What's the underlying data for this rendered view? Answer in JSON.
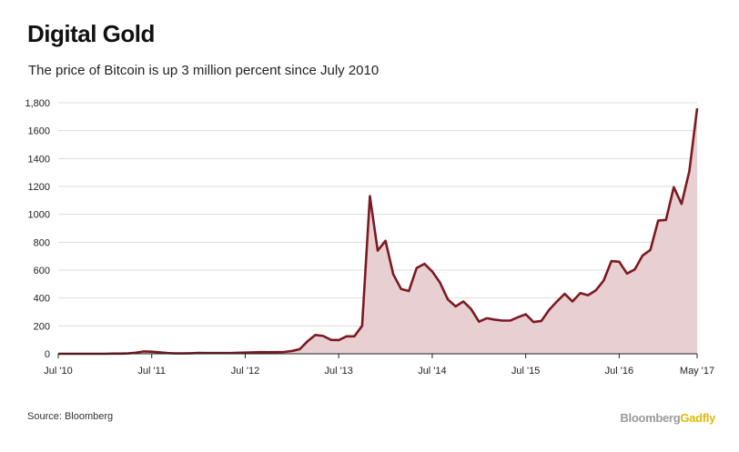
{
  "title": "Digital Gold",
  "subtitle": "The price of Bitcoin is up 3 million percent since July 2010",
  "source": "Source: Bloomberg",
  "brand": {
    "part1": "Bloomberg",
    "part2": "Gadfly"
  },
  "colors": {
    "line": "#7b1a22",
    "fill": "#e8cfd1",
    "grid": "#dcdcdc",
    "axis": "#222222"
  },
  "chart_data": {
    "type": "area",
    "xlabel": "",
    "ylabel": "",
    "ylim": [
      0,
      1800
    ],
    "yticks": [
      0,
      200,
      400,
      600,
      800,
      1000,
      1200,
      1400,
      1600,
      1800
    ],
    "ytick_labels": [
      "0",
      "200",
      "400",
      "600",
      "800",
      "1000",
      "1200",
      "1400",
      "1600",
      "1,800"
    ],
    "xticks": [
      {
        "x": "2010-07",
        "label": "Jul '10"
      },
      {
        "x": "2011-07",
        "label": "Jul '11"
      },
      {
        "x": "2012-07",
        "label": "Jul '12"
      },
      {
        "x": "2013-07",
        "label": "Jul '13"
      },
      {
        "x": "2014-07",
        "label": "Jul '14"
      },
      {
        "x": "2015-07",
        "label": "Jul '15"
      },
      {
        "x": "2016-07",
        "label": "Jul '16"
      },
      {
        "x": "2017-05",
        "label": "May '17"
      }
    ],
    "grid": true,
    "series": [
      {
        "x": [
          "2010-07",
          "2010-08",
          "2010-09",
          "2010-10",
          "2010-11",
          "2010-12",
          "2011-01",
          "2011-02",
          "2011-03",
          "2011-04",
          "2011-05",
          "2011-06",
          "2011-07",
          "2011-08",
          "2011-09",
          "2011-10",
          "2011-11",
          "2011-12",
          "2012-01",
          "2012-02",
          "2012-03",
          "2012-04",
          "2012-05",
          "2012-06",
          "2012-07",
          "2012-08",
          "2012-09",
          "2012-10",
          "2012-11",
          "2012-12",
          "2013-01",
          "2013-02",
          "2013-03",
          "2013-04",
          "2013-05",
          "2013-06",
          "2013-07",
          "2013-08",
          "2013-09",
          "2013-10",
          "2013-11",
          "2013-12",
          "2014-01",
          "2014-02",
          "2014-03",
          "2014-04",
          "2014-05",
          "2014-06",
          "2014-07",
          "2014-08",
          "2014-09",
          "2014-10",
          "2014-11",
          "2014-12",
          "2015-01",
          "2015-02",
          "2015-03",
          "2015-04",
          "2015-05",
          "2015-06",
          "2015-07",
          "2015-08",
          "2015-09",
          "2015-10",
          "2015-11",
          "2015-12",
          "2016-01",
          "2016-02",
          "2016-03",
          "2016-04",
          "2016-05",
          "2016-06",
          "2016-07",
          "2016-08",
          "2016-09",
          "2016-10",
          "2016-11",
          "2016-12",
          "2017-01",
          "2017-02",
          "2017-03",
          "2017-04",
          "2017-05"
        ],
        "values": [
          0,
          0,
          0,
          0,
          0,
          0,
          0,
          1,
          1,
          3,
          8,
          17,
          15,
          10,
          5,
          3,
          3,
          4,
          6,
          5,
          5,
          5,
          5,
          7,
          9,
          10,
          12,
          11,
          12,
          13,
          20,
          33,
          90,
          135,
          128,
          100,
          98,
          125,
          125,
          200,
          1130,
          740,
          810,
          570,
          465,
          450,
          615,
          645,
          590,
          510,
          390,
          340,
          375,
          320,
          230,
          255,
          245,
          238,
          238,
          262,
          283,
          228,
          235,
          315,
          375,
          430,
          375,
          435,
          420,
          455,
          525,
          665,
          660,
          575,
          605,
          705,
          745,
          955,
          960,
          1195,
          1075,
          1310,
          1760
        ]
      }
    ]
  }
}
